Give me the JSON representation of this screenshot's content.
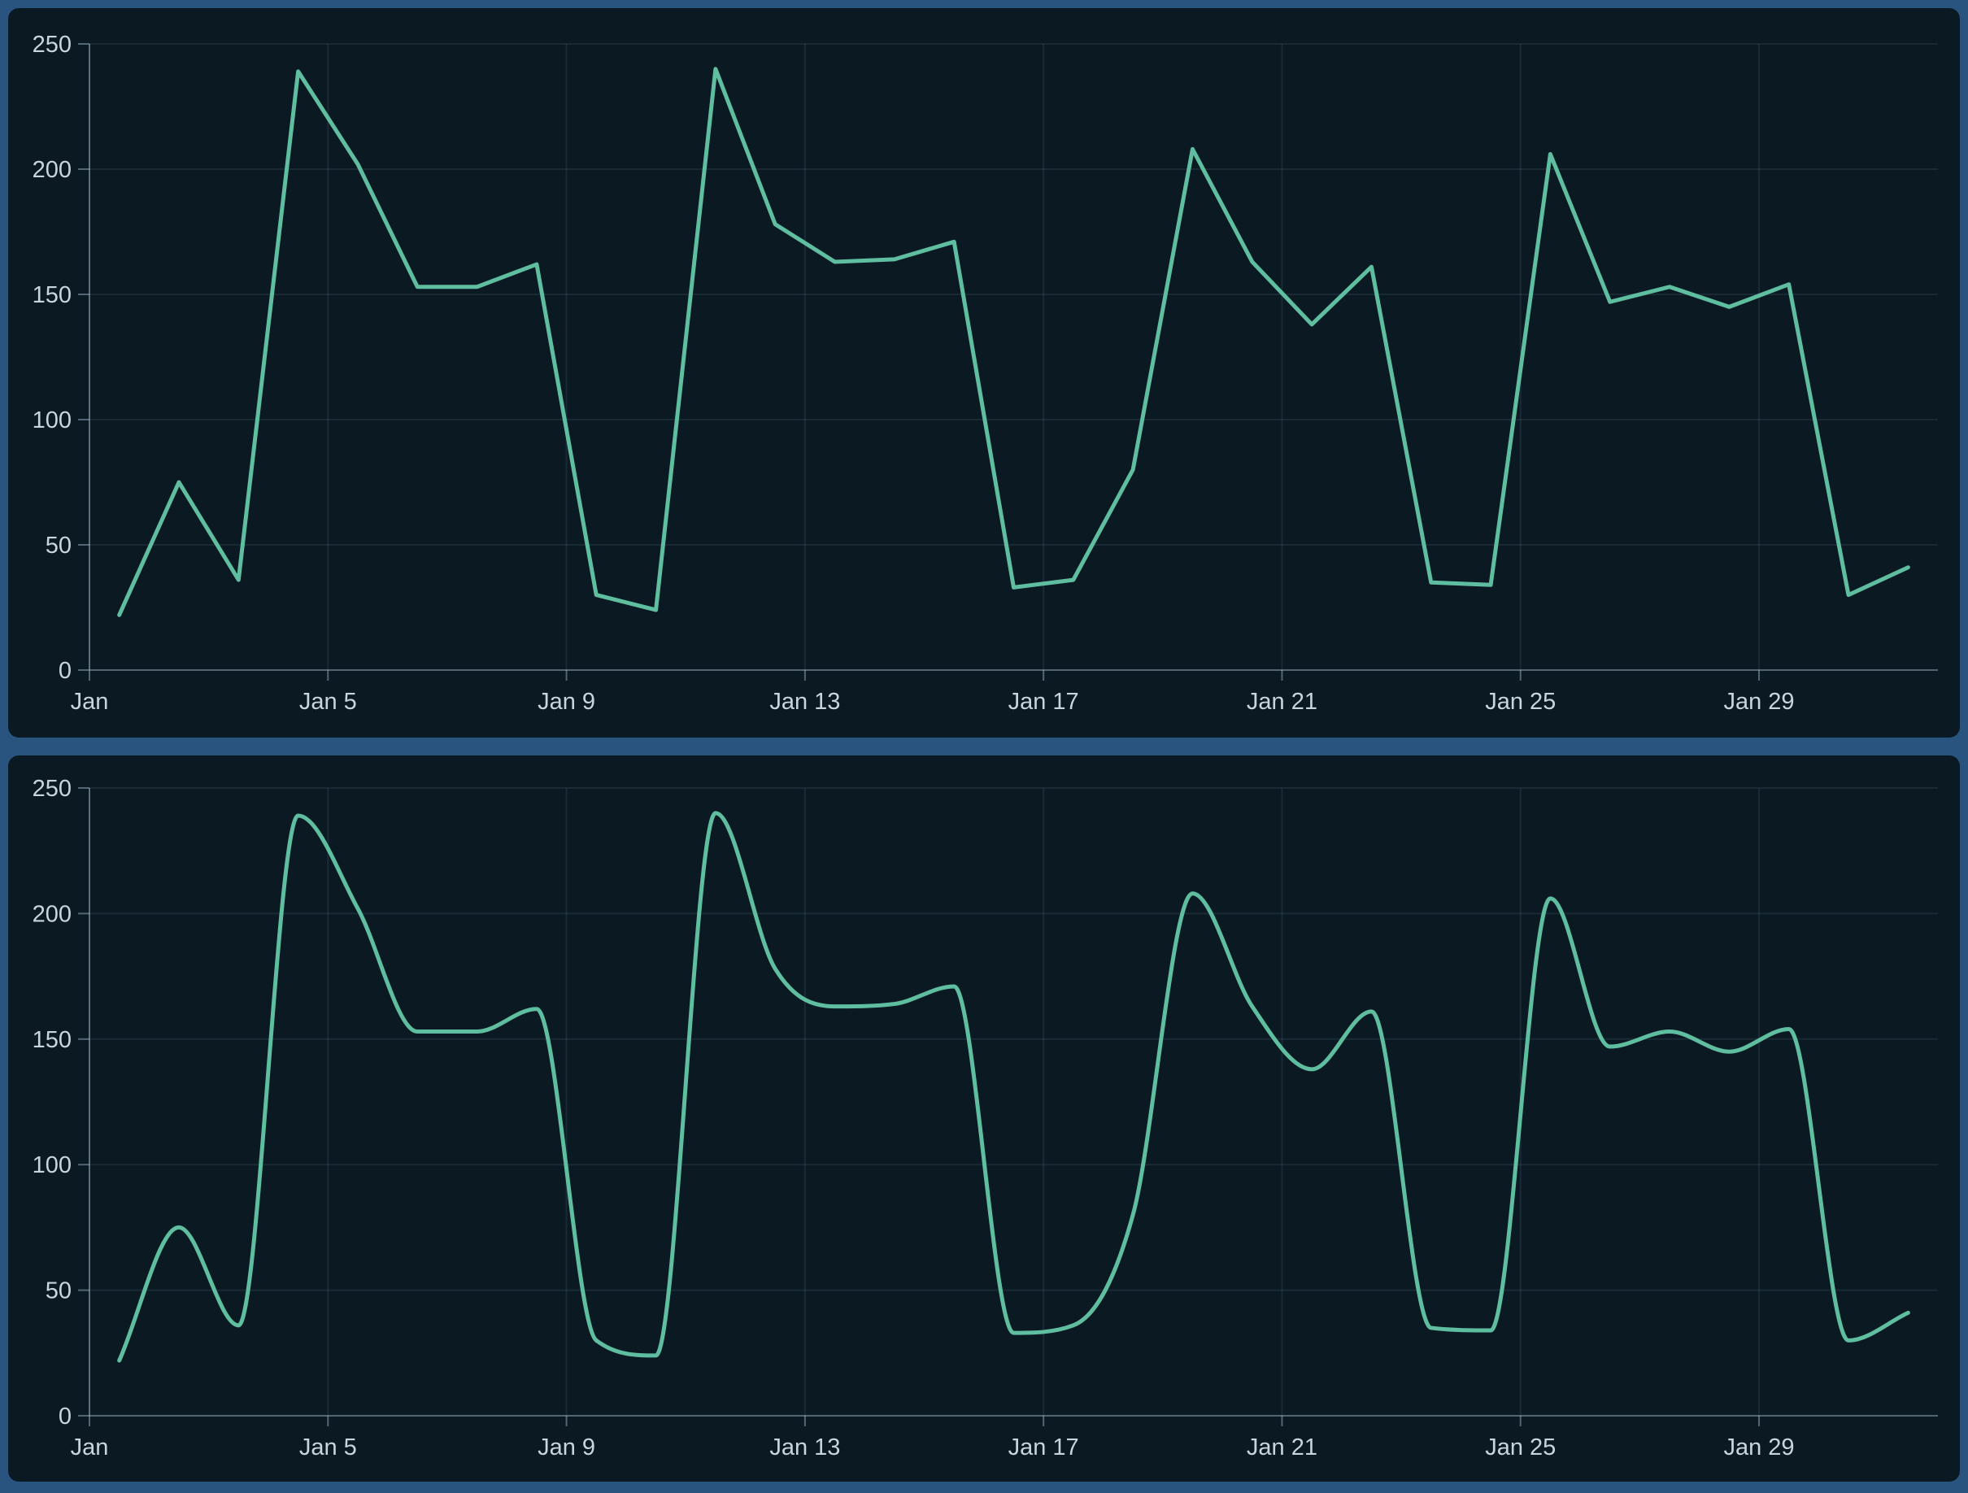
{
  "colors": {
    "frame_background": "#2A5480",
    "panel_background": "#0B1923",
    "series_line": "#5FBE9F",
    "gridline": "rgba(170,195,212,0.10)",
    "axis_line": "rgba(170,195,212,0.45)",
    "tick_text": "#C9D4DB"
  },
  "chart_data": [
    {
      "type": "line",
      "smooth": false,
      "title": "",
      "xlabel": "",
      "ylabel": "",
      "legend": "none",
      "grid": "on",
      "line_color": "#5FBE9F",
      "ylim": [
        0,
        250
      ],
      "y_ticks": [
        0,
        50,
        100,
        150,
        200,
        250
      ],
      "y_tick_labels": [
        "0",
        "50",
        "100",
        "150",
        "200",
        "250"
      ],
      "x_tick_indices": [
        0,
        4,
        8,
        12,
        16,
        20,
        24,
        28
      ],
      "x_tick_labels": [
        "Jan",
        "Jan 5",
        "Jan 9",
        "Jan 13",
        "Jan 17",
        "Jan 21",
        "Jan 25",
        "Jan 29"
      ],
      "categories": [
        "Jan 1",
        "Jan 2",
        "Jan 3",
        "Jan 4",
        "Jan 5",
        "Jan 6",
        "Jan 7",
        "Jan 8",
        "Jan 9",
        "Jan 10",
        "Jan 11",
        "Jan 12",
        "Jan 13",
        "Jan 14",
        "Jan 15",
        "Jan 16",
        "Jan 17",
        "Jan 18",
        "Jan 19",
        "Jan 20",
        "Jan 21",
        "Jan 22",
        "Jan 23",
        "Jan 24",
        "Jan 25",
        "Jan 26",
        "Jan 27",
        "Jan 28",
        "Jan 29",
        "Jan 30",
        "Jan 31"
      ],
      "values": [
        22,
        75,
        36,
        239,
        202,
        153,
        153,
        162,
        30,
        24,
        240,
        178,
        163,
        164,
        171,
        33,
        36,
        80,
        208,
        163,
        138,
        161,
        35,
        34,
        206,
        147,
        153,
        145,
        154,
        30,
        41
      ]
    },
    {
      "type": "line",
      "smooth": true,
      "title": "",
      "xlabel": "",
      "ylabel": "",
      "legend": "none",
      "grid": "on",
      "line_color": "#5FBE9F",
      "ylim": [
        0,
        250
      ],
      "y_ticks": [
        0,
        50,
        100,
        150,
        200,
        250
      ],
      "y_tick_labels": [
        "0",
        "50",
        "100",
        "150",
        "200",
        "250"
      ],
      "x_tick_indices": [
        0,
        4,
        8,
        12,
        16,
        20,
        24,
        28
      ],
      "x_tick_labels": [
        "Jan",
        "Jan 5",
        "Jan 9",
        "Jan 13",
        "Jan 17",
        "Jan 21",
        "Jan 25",
        "Jan 29"
      ],
      "categories": [
        "Jan 1",
        "Jan 2",
        "Jan 3",
        "Jan 4",
        "Jan 5",
        "Jan 6",
        "Jan 7",
        "Jan 8",
        "Jan 9",
        "Jan 10",
        "Jan 11",
        "Jan 12",
        "Jan 13",
        "Jan 14",
        "Jan 15",
        "Jan 16",
        "Jan 17",
        "Jan 18",
        "Jan 19",
        "Jan 20",
        "Jan 21",
        "Jan 22",
        "Jan 23",
        "Jan 24",
        "Jan 25",
        "Jan 26",
        "Jan 27",
        "Jan 28",
        "Jan 29",
        "Jan 30",
        "Jan 31"
      ],
      "values": [
        22,
        75,
        36,
        239,
        202,
        153,
        153,
        162,
        30,
        24,
        240,
        178,
        163,
        164,
        171,
        33,
        36,
        80,
        208,
        163,
        138,
        161,
        35,
        34,
        206,
        147,
        153,
        145,
        154,
        30,
        41
      ]
    }
  ]
}
